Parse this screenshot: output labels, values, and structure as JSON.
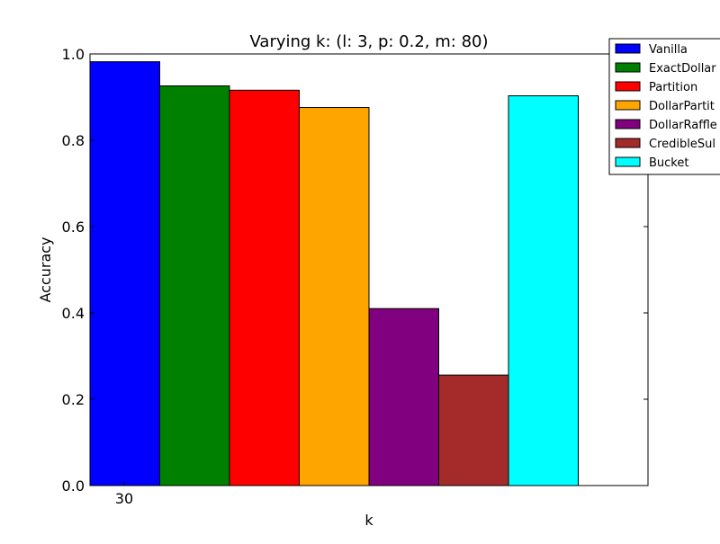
{
  "chart_data": {
    "type": "bar",
    "title": "Varying k: (l: 3, p: 0.2, m: 80)",
    "xlabel": "k",
    "ylabel": "Accuracy",
    "categories": [
      "30"
    ],
    "ylim": [
      0,
      1.0
    ],
    "yticks": [
      "0.0",
      "0.2",
      "0.4",
      "0.6",
      "0.8",
      "1.0"
    ],
    "grid": false,
    "legend_position": "top-right",
    "series": [
      {
        "name": "Vanilla",
        "color": "#0000ff",
        "values": [
          0.982
        ]
      },
      {
        "name": "ExactDollar",
        "color": "#008000",
        "values": [
          0.926
        ]
      },
      {
        "name": "Partition",
        "color": "#ff0000",
        "values": [
          0.916
        ]
      },
      {
        "name": "DollarPartit",
        "color": "#ffa500",
        "values": [
          0.876
        ]
      },
      {
        "name": "DollarRaffle",
        "color": "#800080",
        "values": [
          0.41
        ]
      },
      {
        "name": "CredibleSul",
        "color": "#a52a2a",
        "values": [
          0.256
        ]
      },
      {
        "name": "Bucket",
        "color": "#00ffff",
        "values": [
          0.903
        ]
      }
    ]
  }
}
